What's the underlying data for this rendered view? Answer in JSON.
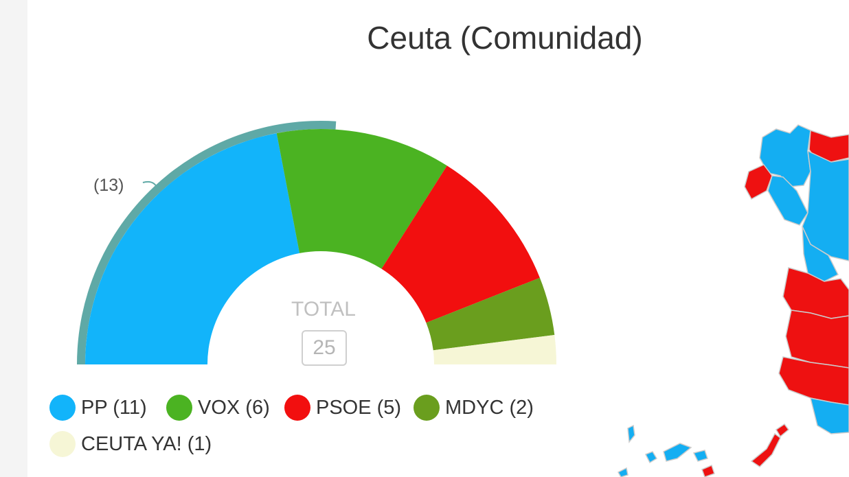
{
  "title": "Ceuta (Comunidad)",
  "chart_data": {
    "type": "pie",
    "subtype": "semicircle-parliament",
    "title": "Ceuta (Comunidad)",
    "total_label": "TOTAL",
    "total_seats": 25,
    "majority": 13,
    "majority_label": "(13)",
    "parties": [
      {
        "name": "PP",
        "seats": 11,
        "label": "PP (11)",
        "color": "#12b4fa"
      },
      {
        "name": "VOX",
        "seats": 6,
        "label": "VOX (6)",
        "color": "#4bb322"
      },
      {
        "name": "PSOE",
        "seats": 5,
        "label": "PSOE (5)",
        "color": "#f20f0f"
      },
      {
        "name": "MDYC",
        "seats": 2,
        "label": "MDYC (2)",
        "color": "#6a9e1e"
      },
      {
        "name": "CEUTA YA!",
        "seats": 1,
        "label": "CEUTA YA! (1)",
        "color": "#f6f6d6"
      }
    ],
    "majority_arc_color": "#5fa9a6"
  },
  "map": {
    "blue": "#14aef2",
    "red": "#ee1111",
    "border": "#cccccc"
  }
}
